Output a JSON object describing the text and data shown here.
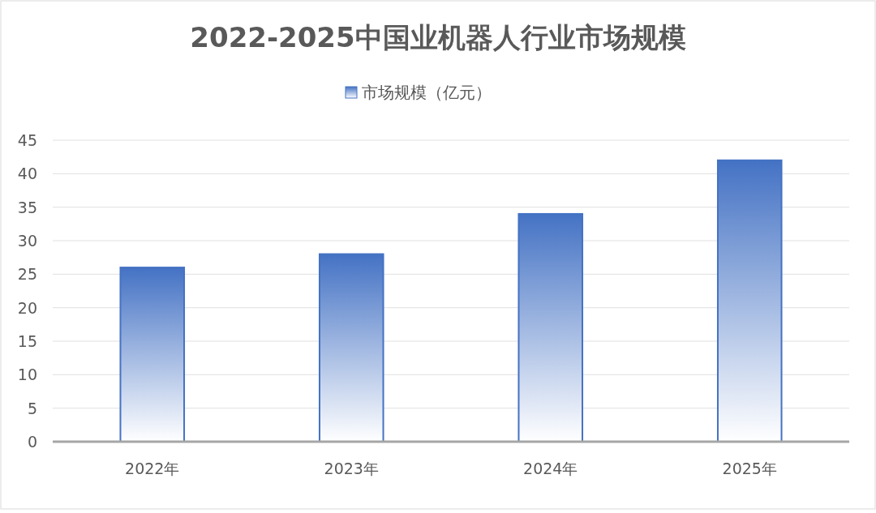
{
  "chart_data": {
    "type": "bar",
    "title": "2022-2025中国业机器人行业市场规模",
    "categories": [
      "2022年",
      "2023年",
      "2024年",
      "2025年"
    ],
    "series": [
      {
        "name": "市场规模（亿元）",
        "color": "#4472c4",
        "values": [
          26,
          28,
          34,
          42
        ]
      }
    ],
    "ylim": [
      0,
      45
    ],
    "yticks": [
      0,
      5,
      10,
      15,
      20,
      25,
      30,
      35,
      40,
      45
    ],
    "grid": "y",
    "legend": "top"
  }
}
